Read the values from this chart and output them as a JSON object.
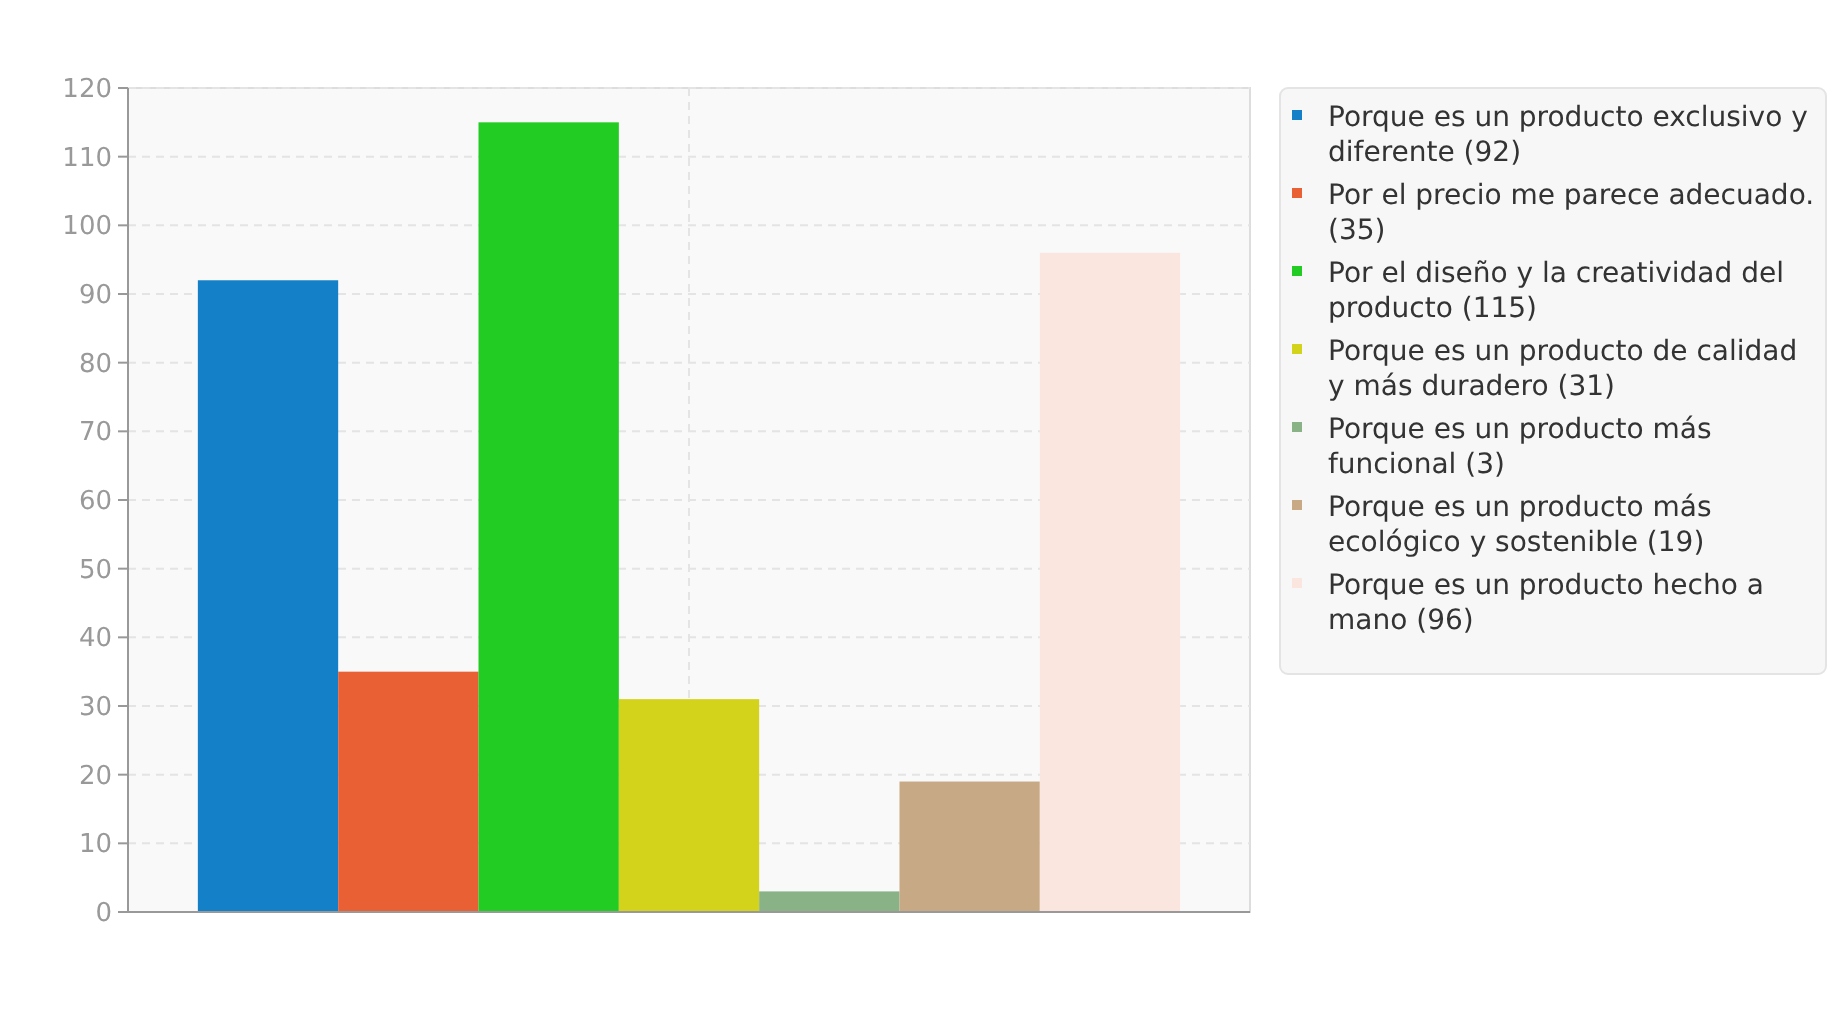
{
  "chart_data": {
    "type": "bar",
    "categories": [
      null
    ],
    "series": [
      {
        "name": "Porque es un producto exclusivo y diferente (92)",
        "color": "#1380c8",
        "values": [
          92
        ]
      },
      {
        "name": "Por el precio me parece adecuado. (35)",
        "color": "#e86033",
        "values": [
          35
        ]
      },
      {
        "name": "Por el diseño y la creatividad del producto (115)",
        "color": "#22cc22",
        "values": [
          115
        ]
      },
      {
        "name": "Porque es un producto de calidad y más duradero (31)",
        "color": "#d3d31c",
        "values": [
          31
        ]
      },
      {
        "name": "Porque es un producto más funcional (3)",
        "color": "#8ab287",
        "values": [
          3
        ]
      },
      {
        "name": "Porque es un producto más ecológico y sostenible (19)",
        "color": "#c8a985",
        "values": [
          19
        ]
      },
      {
        "name": "Porque es un producto hecho a mano (96)",
        "color": "#fbe6df",
        "values": [
          96
        ]
      }
    ],
    "ylim": [
      0,
      120
    ],
    "yticks": [
      0,
      10,
      20,
      30,
      40,
      50,
      60,
      70,
      80,
      90,
      100,
      110,
      120
    ],
    "grid": true,
    "legend": "right"
  }
}
